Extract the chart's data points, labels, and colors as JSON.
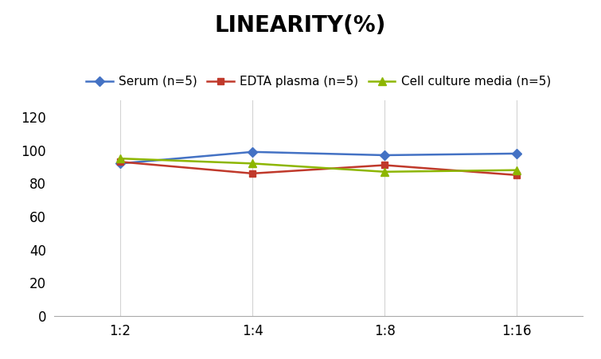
{
  "title": "LINEARITY(%)",
  "x_labels": [
    "1:2",
    "1:4",
    "1:8",
    "1:16"
  ],
  "x_positions": [
    0,
    1,
    2,
    3
  ],
  "series": [
    {
      "label": "Serum (n=5)",
      "values": [
        92,
        99,
        97,
        98
      ],
      "color": "#4472C4",
      "marker": "D",
      "linewidth": 1.8,
      "markersize": 6
    },
    {
      "label": "EDTA plasma (n=5)",
      "values": [
        93,
        86,
        91,
        85
      ],
      "color": "#C0392B",
      "marker": "s",
      "linewidth": 1.8,
      "markersize": 6
    },
    {
      "label": "Cell culture media (n=5)",
      "values": [
        95,
        92,
        87,
        88
      ],
      "color": "#8DB600",
      "marker": "^",
      "linewidth": 1.8,
      "markersize": 7
    }
  ],
  "ylim": [
    0,
    130
  ],
  "yticks": [
    0,
    20,
    40,
    60,
    80,
    100,
    120
  ],
  "background_color": "#FFFFFF",
  "grid_color": "#D3D3D3",
  "title_fontsize": 20,
  "legend_fontsize": 11,
  "tick_fontsize": 12
}
